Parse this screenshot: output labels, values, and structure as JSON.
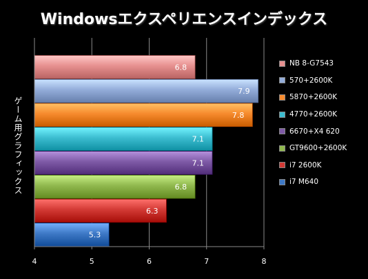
{
  "chart_data": {
    "type": "bar",
    "orientation": "horizontal",
    "title": "Windowsエクスペリエンスインデックス",
    "ylabel": "ゲーム用グラフィックス",
    "xlabel": "",
    "xlim": [
      4,
      8
    ],
    "xticks": [
      "4",
      "5",
      "6",
      "7",
      "8"
    ],
    "grid": "vertical",
    "legend_position": "right",
    "categories": [
      "NB 8-G7543",
      "570+2600K",
      "5870+2600K",
      "4770+2600K",
      "6670+X4 620",
      "GT9600+2600K",
      "i7 2600K",
      "i7 M640"
    ],
    "values": [
      6.8,
      7.9,
      7.8,
      7.1,
      7.1,
      6.8,
      6.3,
      5.3
    ],
    "value_labels": [
      "6.8",
      "7.9",
      "7.8",
      "7.1",
      "7.1",
      "6.8",
      "6.3",
      "5.3"
    ],
    "colors": [
      "#e6908f",
      "#93acd9",
      "#f68a2d",
      "#3cbdd0",
      "#7e5aa6",
      "#90b84e",
      "#d33a35",
      "#3e79c6"
    ]
  }
}
